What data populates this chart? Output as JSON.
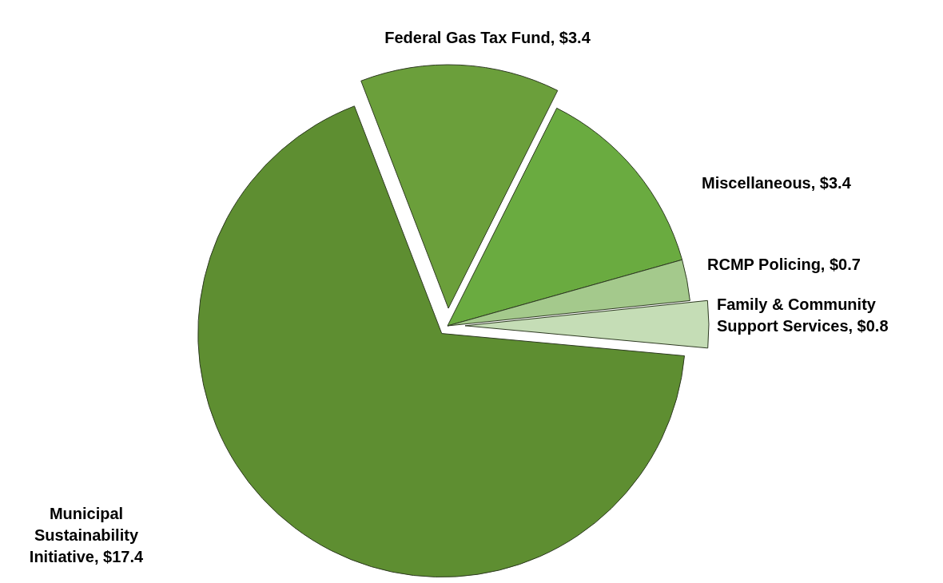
{
  "chart_data": {
    "type": "pie",
    "categories": [
      "Federal Gas Tax Fund",
      "Miscellaneous",
      "RCMP Policing",
      "Family & Community Support Services",
      "Municipal Sustainability Initiative"
    ],
    "values": [
      3.4,
      3.4,
      0.7,
      0.8,
      17.4
    ],
    "value_labels": [
      "$3.4",
      "$3.4",
      "$0.7",
      "$0.8",
      "$17.4"
    ],
    "colors": [
      "#6b9f3b",
      "#6aab40",
      "#a4c98c",
      "#c5ddb6",
      "#5e8e31"
    ]
  }
}
